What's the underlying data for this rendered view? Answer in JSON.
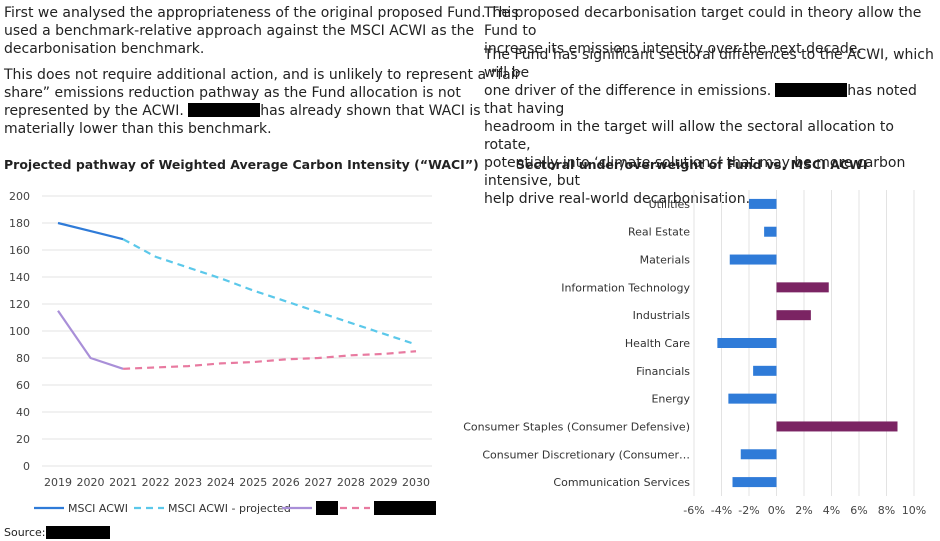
{
  "left_text": {
    "p1_lines": [
      "First we analysed the appropriateness of the original proposed Fund. This",
      "used a benchmark-relative approach against the MSCI ACWI as the",
      "decarbonisation benchmark."
    ],
    "p2_lines": [
      "This does not require additional action, and is unlikely to represent a “fair",
      "share” emissions reduction pathway as the Fund allocation is not",
      "represented by the ACWI."
    ],
    "p2_line3_after": "has already shown that WACI is",
    "p2_line4": "materially lower than this benchmark."
  },
  "right_text": {
    "p1_lines": [
      "The proposed decarbonisation target could in theory allow the Fund to",
      "increase its emissions intensity over the next decade."
    ],
    "p2_line1": "The Fund has significant sectoral differences to the ACWI, which will be",
    "p2_line2_before": "one driver of the difference in emissions.",
    "p2_line2_after": "has noted that having",
    "p2_rest": [
      "headroom in the target will allow the sectoral allocation to rotate,",
      "potentially into ‘climate solutions’ that may be more carbon intensive, but",
      "help drive real-world decarbonisation."
    ]
  },
  "source_label": "Source:",
  "chart_data": [
    {
      "type": "line",
      "title": "Projected pathway of Weighted Average Carbon Intensity (“WACI”)",
      "x": [
        2019,
        2020,
        2021,
        2022,
        2023,
        2024,
        2025,
        2026,
        2027,
        2028,
        2029,
        2030
      ],
      "ylim": [
        0,
        200
      ],
      "yticks": [
        0,
        20,
        40,
        60,
        80,
        100,
        120,
        140,
        160,
        180,
        200
      ],
      "grid": true,
      "legend_position": "bottom",
      "series": [
        {
          "name": "MSCI ACWI",
          "color": "#2f7bd8",
          "style": "solid",
          "x": [
            2019,
            2020,
            2021
          ],
          "y": [
            180,
            174,
            168
          ]
        },
        {
          "name": "MSCI ACWI - projected",
          "color": "#5bc8ea",
          "style": "dashed",
          "x": [
            2021,
            2022,
            2023,
            2024,
            2025,
            2026,
            2027,
            2028,
            2029,
            2030
          ],
          "y": [
            168,
            155,
            147,
            139,
            130,
            122,
            114,
            106,
            98,
            90
          ]
        },
        {
          "name": "",
          "color": "#a98fd8",
          "style": "solid",
          "x": [
            2019,
            2020,
            2021
          ],
          "y": [
            115,
            80,
            72
          ]
        },
        {
          "name": "",
          "color": "#e87aa0",
          "style": "dashed",
          "x": [
            2021,
            2022,
            2023,
            2024,
            2025,
            2026,
            2027,
            2028,
            2029,
            2030
          ],
          "y": [
            72,
            73,
            74,
            76,
            77,
            79,
            80,
            82,
            83,
            85
          ]
        }
      ]
    },
    {
      "type": "bar",
      "orientation": "horizontal",
      "title": "Sectoral under/overweight of Fund vs. MSCI ACWI",
      "categories": [
        "Utilities",
        "Real Estate",
        "Materials",
        "Information Technology",
        "Industrials",
        "Health Care",
        "Financials",
        "Energy",
        "Consumer Staples (Consumer Defensive)",
        "Consumer Discretionary (Consumer…",
        "Communication Services"
      ],
      "values": [
        -2.0,
        -0.9,
        -3.4,
        3.8,
        2.5,
        -4.3,
        -1.7,
        -3.5,
        8.8,
        -2.6,
        -3.2
      ],
      "positive_color": "#7b2463",
      "negative_color": "#2f7bd8",
      "xlim": [
        -6,
        10
      ],
      "xticks": [
        -6,
        -4,
        -2,
        0,
        2,
        4,
        6,
        8,
        10
      ],
      "xtick_labels": [
        "-6%",
        "-4%",
        "-2%",
        "0%",
        "2%",
        "4%",
        "6%",
        "8%",
        "10%"
      ],
      "grid": true
    }
  ]
}
